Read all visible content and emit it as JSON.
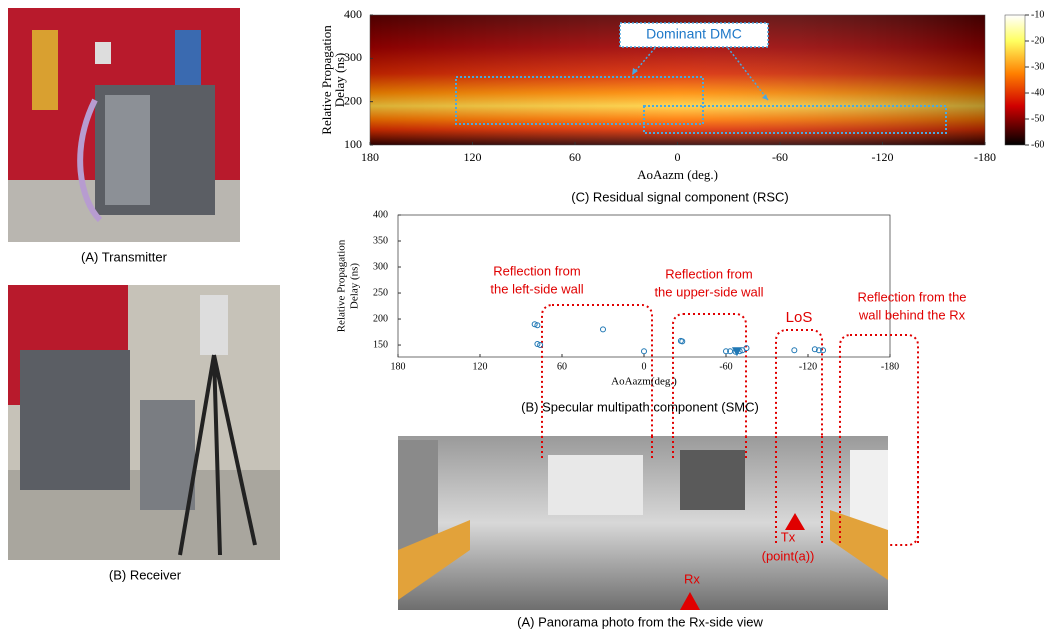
{
  "photos": {
    "transmitter": {
      "caption": "(A) Transmitter"
    },
    "receiver": {
      "caption": "(B) Receiver"
    }
  },
  "rsc": {
    "caption": "(C) Residual signal component (RSC)",
    "xlabel": "AoAazm (deg.)",
    "ylabel": [
      "Relative Propagation",
      "Delay (ns)"
    ],
    "xlim": [
      180,
      -180
    ],
    "xticks": [
      180,
      120,
      60,
      0,
      -60,
      -120,
      -180
    ],
    "ylim": [
      100,
      400
    ],
    "yticks": [
      100,
      200,
      300,
      400
    ],
    "colorbar": {
      "lim": [
        -60,
        -10
      ],
      "ticks": [
        -10,
        -20,
        -30,
        -40,
        -50,
        -60
      ]
    },
    "annotation": "Dominant DMC"
  },
  "smc": {
    "caption": "(B) Specular multipath component (SMC)",
    "xlabel": "AoAazm(deg.)",
    "ylabel": [
      "Relative Propagation",
      "Delay (ns)"
    ],
    "xlim": [
      180,
      -180
    ],
    "xticks": [
      180,
      120,
      60,
      0,
      -60,
      -120,
      -180
    ],
    "ylim": [
      127,
      400
    ],
    "yticks": [
      150,
      200,
      250,
      300,
      350,
      400
    ],
    "color": "#1f77b4",
    "x": [
      80,
      78,
      76,
      78,
      30,
      0,
      -27,
      -28,
      -60,
      -63,
      -67,
      -70,
      -72,
      -75,
      -110,
      -125,
      -128,
      -131
    ],
    "y": [
      190,
      188,
      150,
      152,
      180,
      138,
      158,
      157,
      138,
      138,
      137,
      138,
      140,
      144,
      140,
      142,
      140,
      140
    ],
    "los": {
      "x": -68,
      "y": 138
    },
    "annotations": {
      "left": [
        "Reflection from",
        "the left-side wall"
      ],
      "upper": [
        "Reflection from",
        "the upper-side wall"
      ],
      "los": "LoS",
      "behind": [
        "Reflection from the",
        "wall behind the Rx"
      ]
    }
  },
  "panorama": {
    "caption": "(A) Panorama photo from the Rx-side view",
    "tx": [
      "Tx",
      "(point(a))"
    ],
    "rx": "Rx"
  }
}
